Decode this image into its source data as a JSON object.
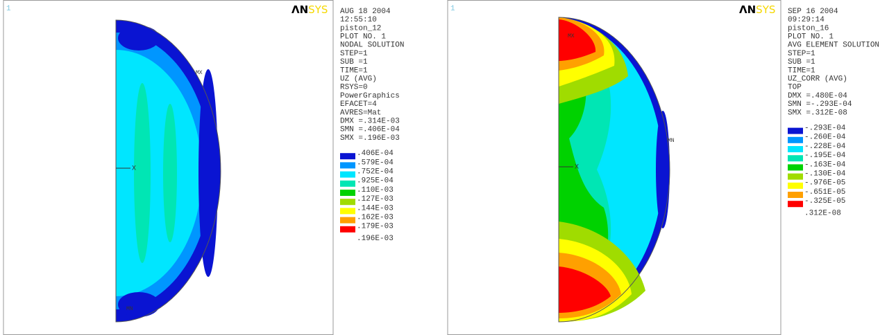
{
  "panels": [
    {
      "window": "1",
      "logo": {
        "bold": "ΛN",
        "light": "SYS"
      },
      "info": [
        "AUG 18 2004",
        "12:55:10",
        "piston_12",
        "PLOT NO.   1",
        "NODAL SOLUTION",
        "STEP=1",
        "SUB =1",
        "TIME=1",
        "UZ       (AVG)",
        "RSYS=0",
        "PowerGraphics",
        "EFACET=4",
        "AVRES=Mat",
        "DMX =.314E-03",
        "SMN =.406E-04",
        "SMX =.196E-03"
      ],
      "legend": {
        "colors": [
          "#0a14d2",
          "#0096ff",
          "#00e6ff",
          "#00e6b4",
          "#00d200",
          "#a0dc00",
          "#ffff00",
          "#ffa000",
          "#ff0000"
        ],
        "labels": [
          ".406E-04",
          ".579E-04",
          ".752E-04",
          ".925E-04",
          ".110E-03",
          ".127E-03",
          ".144E-03",
          ".162E-03",
          ".179E-03",
          ".196E-03"
        ]
      },
      "markers": {
        "max": "MX",
        "min": "MN",
        "axis": "X"
      }
    },
    {
      "window": "1",
      "logo": {
        "bold": "ΛN",
        "light": "SYS"
      },
      "info": [
        "SEP 16 2004",
        "09:29:14",
        "piston_16",
        "PLOT NO.   1",
        "AVG ELEMENT SOLUTION",
        "STEP=1",
        "SUB =1",
        "TIME=1",
        "UZ_CORR  (AVG)",
        "TOP",
        "DMX =.480E-04",
        "SMN =-.293E-04",
        "SMX =.312E-08"
      ],
      "legend": {
        "colors": [
          "#0a14d2",
          "#0096ff",
          "#00e6ff",
          "#00e6b4",
          "#00d200",
          "#a0dc00",
          "#ffff00",
          "#ffa000",
          "#ff0000"
        ],
        "labels": [
          "-.293E-04",
          "-.260E-04",
          "-.228E-04",
          "-.195E-04",
          "-.163E-04",
          "-.130E-04",
          "-.976E-05",
          "-.651E-05",
          "-.325E-05",
          ".312E-08"
        ]
      },
      "markers": {
        "max": "MX",
        "min": "MN",
        "axis": "X"
      }
    }
  ]
}
